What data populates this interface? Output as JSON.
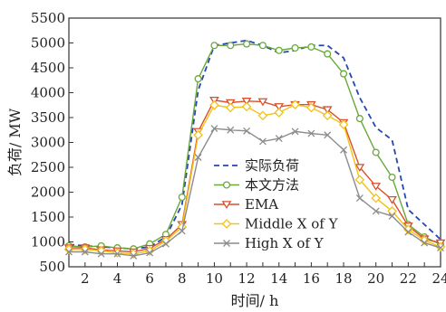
{
  "chart_data": {
    "type": "line",
    "title": "",
    "xlabel": "时间/ h",
    "ylabel": "负荷/ MW",
    "xlim": [
      1,
      24
    ],
    "ylim": [
      500,
      5500
    ],
    "xticks": [
      2,
      4,
      6,
      8,
      10,
      12,
      14,
      16,
      18,
      20,
      22,
      24
    ],
    "yticks": [
      500,
      1000,
      1500,
      2000,
      2500,
      3000,
      3500,
      4000,
      4500,
      5000,
      5500
    ],
    "grid": false,
    "legend_position": "bottom-center",
    "x": [
      1,
      2,
      3,
      4,
      5,
      6,
      7,
      8,
      9,
      10,
      11,
      12,
      13,
      14,
      15,
      16,
      17,
      18,
      19,
      20,
      21,
      22,
      23,
      24
    ],
    "series": [
      {
        "name": "实际负荷",
        "color": "#2447b3",
        "style": "dashed",
        "marker": "none",
        "values": [
          950,
          920,
          900,
          880,
          860,
          900,
          1100,
          1750,
          4050,
          4950,
          5000,
          5050,
          4950,
          4800,
          4850,
          4950,
          4950,
          4700,
          3900,
          3300,
          3050,
          1650,
          1350,
          1050
        ]
      },
      {
        "name": "本文方法",
        "color": "#6aa83a",
        "style": "solid",
        "marker": "circle",
        "values": [
          920,
          900,
          920,
          880,
          860,
          960,
          1150,
          1900,
          4280,
          4950,
          4950,
          4980,
          4950,
          4850,
          4900,
          4920,
          4780,
          4380,
          3480,
          2800,
          2300,
          1350,
          1100,
          950
        ]
      },
      {
        "name": "EMA",
        "color": "#d9502c",
        "style": "solid",
        "marker": "triangle-down",
        "values": [
          880,
          880,
          840,
          820,
          800,
          870,
          1050,
          1350,
          3220,
          3850,
          3800,
          3830,
          3820,
          3720,
          3760,
          3760,
          3660,
          3400,
          2500,
          2120,
          1850,
          1320,
          1060,
          980
        ]
      },
      {
        "name": "Middle X of Y",
        "color": "#f2c218",
        "style": "solid",
        "marker": "diamond",
        "values": [
          850,
          850,
          820,
          780,
          760,
          820,
          1020,
          1300,
          3150,
          3750,
          3700,
          3720,
          3540,
          3600,
          3760,
          3700,
          3540,
          3360,
          2250,
          1880,
          1620,
          1250,
          1030,
          900
        ]
      },
      {
        "name": "High X of Y",
        "color": "#8c8c8c",
        "style": "solid",
        "marker": "x",
        "values": [
          800,
          800,
          760,
          760,
          720,
          780,
          960,
          1220,
          2700,
          3280,
          3250,
          3230,
          3020,
          3080,
          3220,
          3180,
          3150,
          2850,
          1880,
          1620,
          1520,
          1200,
          980,
          880
        ]
      }
    ]
  }
}
